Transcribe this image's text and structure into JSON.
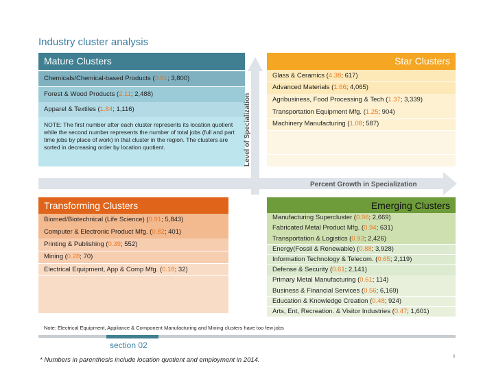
{
  "title": "Industry cluster analysis",
  "mature": {
    "header": "Mature Clusters",
    "rows": [
      {
        "name": "Chemicals/Chemical-based Products (",
        "lq": "3.81",
        "emp": "3,800"
      },
      {
        "name": "Forest & Wood Products (",
        "lq": "2.11",
        "emp": "2,488"
      },
      {
        "name": "Apparel & Textiles (",
        "lq": "1.84",
        "emp": "1,116"
      }
    ],
    "note": "NOTE: The first number after each cluster represents its location quotient while the second number represents the number of total jobs (full and part time jobs by place of work) in that cluster in the region. The clusters are sorted in decreasing order by location quotient."
  },
  "star": {
    "header": "Star Clusters",
    "rows": [
      {
        "name": "Glass & Ceramics (",
        "lq": "4.38",
        "emp": "617"
      },
      {
        "name": "Advanced Materials (",
        "lq": "1.66",
        "emp": "4,065"
      },
      {
        "name": "Agribusiness, Food Processing & Tech (",
        "lq": "1.37",
        "emp": "3,339"
      },
      {
        "name": "Transportation Equipment Mfg. (",
        "lq": "1.25",
        "emp": "904"
      },
      {
        "name": "Machinery Manufacturing (",
        "lq": "1.08",
        "emp": "587"
      }
    ]
  },
  "transforming": {
    "header": "Transforming Clusters",
    "rows": [
      {
        "name": "Biomed/Biotechnical (Life Science) (",
        "lq": "0.91",
        "emp": "5,843"
      },
      {
        "name": "Computer & Electronic Product Mfg. (",
        "lq": "0.82",
        "emp": "401"
      },
      {
        "name": "Printing & Publishing (",
        "lq": "0.39",
        "emp": "552"
      },
      {
        "name": "Mining (",
        "lq": "0.28",
        "emp": "70"
      },
      {
        "name": "Electrical Equipment, App & Comp Mfg. (",
        "lq": "0.18",
        "emp": "32"
      }
    ]
  },
  "emerging": {
    "header": "Emerging Clusters",
    "rows": [
      {
        "name": "Manufacturing Supercluster (",
        "lq": "0.96",
        "emp": "2,669"
      },
      {
        "name": "Fabricated Metal Product Mfg. (",
        "lq": "0.94",
        "emp": "631"
      },
      {
        "name": "Transportation & Logistics (",
        "lq": "0.93",
        "emp": "2,426"
      },
      {
        "name": "Energy(Fossil & Renewable) (",
        "lq": "0.88",
        "emp": "3,928"
      },
      {
        "name": "Information Technology & Telecom. (",
        "lq": "0.65",
        "emp": "2,119"
      },
      {
        "name": "Defense & Security (",
        "lq": "0.61",
        "emp": "2,141"
      },
      {
        "name": "Primary Metal Manufacturing (",
        "lq": "0.61",
        "emp": "114"
      },
      {
        "name": "Business & Financial Services (",
        "lq": "0.56",
        "emp": "6,169"
      },
      {
        "name": "Education & Knowledge Creation (",
        "lq": "0.48",
        "emp": "924"
      },
      {
        "name": "Arts, Ent, Recreation. & Visitor Industries (",
        "lq": "0.47",
        "emp": "1,601"
      }
    ]
  },
  "axes": {
    "y_label": "Level of Specialization",
    "x_label": "Percent Growth in Specialization"
  },
  "footnote": "Note: Electrical Equipment, Appliance & Component Manufacturing and Mining clusters have too few jobs",
  "section_label": "section 02",
  "bottom_note": "* Numbers in parenthesis include location quotient and employment in 2014.",
  "page_number": "9",
  "colors": {
    "mature": "#3f7f91",
    "star": "#f5a623",
    "transforming": "#e0651a",
    "emerging": "#6e9c3a",
    "number": "#e87722"
  }
}
